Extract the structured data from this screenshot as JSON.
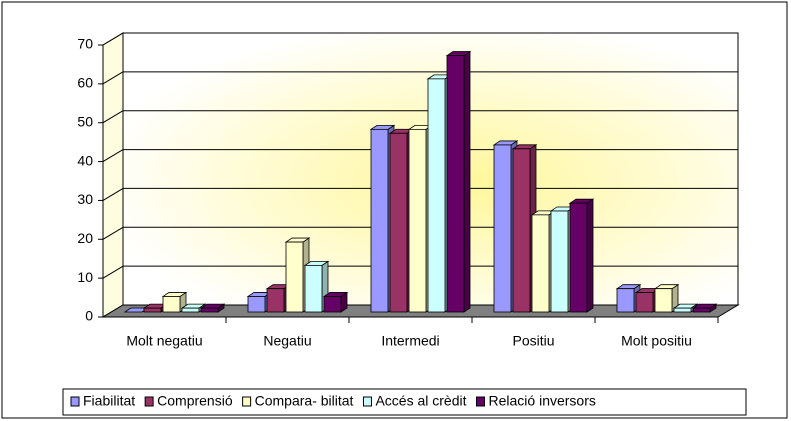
{
  "chart_data": {
    "type": "bar3d",
    "categories": [
      "Molt negatiu",
      "Negatiu",
      "Intermedi",
      "Positiu",
      "Molt positiu"
    ],
    "series": [
      {
        "name": "Fiabilitat",
        "color": "#9999ff",
        "values": [
          0,
          4,
          47,
          43,
          6
        ]
      },
      {
        "name": "Comprensió",
        "color": "#993366",
        "values": [
          1,
          6,
          46,
          42,
          5
        ]
      },
      {
        "name": "Compara- bilitat",
        "color": "#ffffcc",
        "values": [
          4,
          18,
          47,
          25,
          6
        ]
      },
      {
        "name": "Accés al crèdit",
        "color": "#ccffff",
        "values": [
          1,
          12,
          60,
          26,
          1
        ]
      },
      {
        "name": "Relació inversors",
        "color": "#660066",
        "values": [
          1,
          4,
          66,
          28,
          1
        ]
      }
    ],
    "ylim": [
      0,
      70
    ],
    "yticks": [
      0,
      10,
      20,
      30,
      40,
      50,
      60,
      70
    ],
    "grid": true,
    "legend": "bottom"
  }
}
